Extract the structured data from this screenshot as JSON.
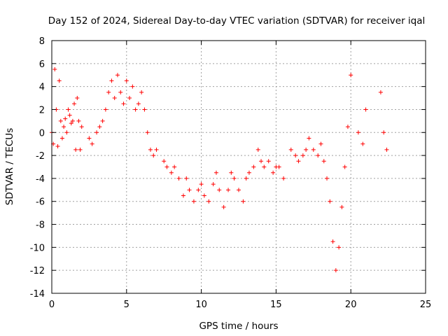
{
  "chart_data": {
    "type": "scatter",
    "title": "Day 152 of 2024, Sidereal Day-to-day VTEC variation (SDTVAR) for receiver iqal",
    "xlabel": "GPS time / hours",
    "ylabel": "SDTVAR / TECUs",
    "xlim": [
      0,
      25
    ],
    "ylim": [
      -14,
      8
    ],
    "xticks": [
      0,
      5,
      10,
      15,
      20,
      25
    ],
    "yticks": [
      -14,
      -12,
      -10,
      -8,
      -6,
      -4,
      -2,
      0,
      2,
      4,
      6,
      8
    ],
    "grid": true,
    "marker": "+",
    "marker_color": "#ff0000",
    "grid_color": "#a0a0a0",
    "series": [
      {
        "name": "SDTVAR",
        "x": [
          0.0,
          0.1,
          0.2,
          0.3,
          0.4,
          0.5,
          0.6,
          0.7,
          0.8,
          0.9,
          1.0,
          1.1,
          1.2,
          1.3,
          1.4,
          1.5,
          1.6,
          1.7,
          1.8,
          1.9,
          2.0,
          2.5,
          2.7,
          3.0,
          3.2,
          3.4,
          3.6,
          3.8,
          4.0,
          4.2,
          4.4,
          4.6,
          4.8,
          5.0,
          5.2,
          5.4,
          5.6,
          5.8,
          6.0,
          6.2,
          6.4,
          6.6,
          6.8,
          7.0,
          7.5,
          7.7,
          8.0,
          8.2,
          8.5,
          8.8,
          9.0,
          9.2,
          9.5,
          9.8,
          10.0,
          10.2,
          10.5,
          10.8,
          11.0,
          11.2,
          11.5,
          11.8,
          12.0,
          12.2,
          12.5,
          12.8,
          13.0,
          13.2,
          13.5,
          13.8,
          14.0,
          14.2,
          14.5,
          14.8,
          15.0,
          15.2,
          15.5,
          16.0,
          16.3,
          16.5,
          16.8,
          17.0,
          17.2,
          17.5,
          17.8,
          18.0,
          18.2,
          18.4,
          18.6,
          18.8,
          19.0,
          19.2,
          19.4,
          19.6,
          19.8,
          20.0,
          20.5,
          20.8,
          21.0,
          22.0,
          22.2,
          22.4
        ],
        "y": [
          0.0,
          -1.0,
          5.5,
          2.0,
          -1.2,
          4.5,
          1.0,
          -0.5,
          0.5,
          1.2,
          0.0,
          2.0,
          1.5,
          0.8,
          1.0,
          2.5,
          -1.5,
          3.0,
          1.0,
          -1.5,
          0.5,
          -0.5,
          -1.0,
          0.0,
          0.5,
          1.0,
          2.0,
          3.5,
          4.5,
          3.0,
          5.0,
          3.5,
          2.5,
          4.5,
          3.0,
          4.0,
          2.0,
          2.5,
          3.5,
          2.0,
          0.0,
          -1.5,
          -2.0,
          -1.5,
          -2.5,
          -3.0,
          -3.5,
          -3.0,
          -4.0,
          -5.5,
          -4.0,
          -5.0,
          -6.0,
          -5.0,
          -4.5,
          -5.5,
          -6.0,
          -4.5,
          -3.5,
          -5.0,
          -6.5,
          -5.0,
          -3.5,
          -4.0,
          -5.0,
          -6.0,
          -4.0,
          -3.5,
          -3.0,
          -1.5,
          -2.5,
          -3.0,
          -2.5,
          -3.5,
          -3.0,
          -3.0,
          -4.0,
          -1.5,
          -2.0,
          -2.5,
          -2.0,
          -1.5,
          -0.5,
          -1.5,
          -2.0,
          -1.0,
          -2.5,
          -4.0,
          -6.0,
          -9.5,
          -12.0,
          -10.0,
          -6.5,
          -3.0,
          0.5,
          5.0,
          0.0,
          -1.0,
          2.0,
          3.5,
          0.0,
          -1.5
        ]
      }
    ]
  }
}
